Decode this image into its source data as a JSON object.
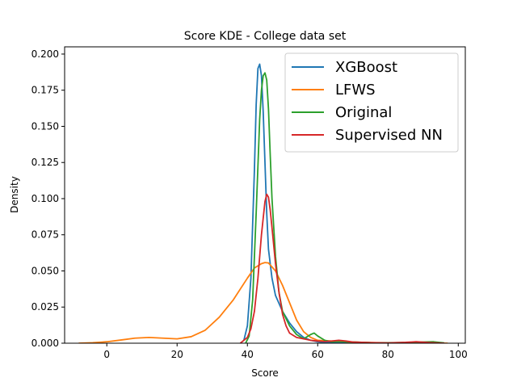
{
  "chart_data": {
    "type": "line",
    "title": "Score KDE - College data set",
    "xlabel": "Score",
    "ylabel": "Density",
    "xlim": [
      -12,
      102
    ],
    "ylim": [
      0,
      0.205
    ],
    "xticks": [
      0,
      20,
      40,
      60,
      80,
      100
    ],
    "xtick_labels": [
      "0",
      "20",
      "40",
      "60",
      "80",
      "100"
    ],
    "yticks": [
      0,
      0.025,
      0.05,
      0.075,
      0.1,
      0.125,
      0.15,
      0.175,
      0.2
    ],
    "ytick_labels": [
      "0.000",
      "0.025",
      "0.050",
      "0.075",
      "0.100",
      "0.125",
      "0.150",
      "0.175",
      "0.200"
    ],
    "grid": false,
    "legend_position": "top-right",
    "series": [
      {
        "name": "XGBoost",
        "color": "#1f77b4",
        "x": [
          39,
          40,
          41,
          42,
          42.5,
          43,
          43.5,
          44,
          44.5,
          45,
          45.5,
          46,
          47,
          48,
          50,
          52,
          54,
          56,
          58,
          60,
          62,
          64,
          66,
          68,
          70
        ],
        "y": [
          0.002,
          0.012,
          0.045,
          0.12,
          0.165,
          0.19,
          0.193,
          0.185,
          0.16,
          0.125,
          0.09,
          0.065,
          0.045,
          0.033,
          0.022,
          0.014,
          0.008,
          0.004,
          0.002,
          0.001,
          0.0005,
          0.0003,
          0.0002,
          0.0001,
          0.0
        ]
      },
      {
        "name": "LFWS",
        "color": "#ff7f0e",
        "x": [
          -8,
          -4,
          0,
          4,
          8,
          12,
          16,
          20,
          24,
          28,
          32,
          36,
          40,
          42,
          44,
          45,
          46,
          48,
          50,
          52,
          54,
          56,
          58,
          60,
          64,
          68,
          72,
          76,
          80,
          86,
          92,
          97
        ],
        "y": [
          0.0,
          0.0003,
          0.001,
          0.0022,
          0.0035,
          0.004,
          0.0035,
          0.003,
          0.0045,
          0.009,
          0.018,
          0.03,
          0.045,
          0.052,
          0.055,
          0.0558,
          0.0555,
          0.05,
          0.04,
          0.028,
          0.016,
          0.008,
          0.004,
          0.002,
          0.0015,
          0.001,
          0.0006,
          0.0004,
          0.0003,
          0.0002,
          0.0001,
          0.0
        ]
      },
      {
        "name": "Original",
        "color": "#2ca02c",
        "x": [
          39.5,
          40.5,
          41.5,
          42.5,
          43.5,
          44,
          44.5,
          45,
          45.5,
          46,
          46.5,
          47,
          48,
          49,
          50,
          52,
          54,
          56,
          58,
          59,
          60,
          62,
          64,
          66,
          70,
          75,
          80,
          85,
          90,
          93,
          96
        ],
        "y": [
          0.0,
          0.005,
          0.03,
          0.09,
          0.155,
          0.175,
          0.185,
          0.187,
          0.182,
          0.162,
          0.13,
          0.1,
          0.06,
          0.035,
          0.022,
          0.012,
          0.006,
          0.003,
          0.006,
          0.007,
          0.005,
          0.002,
          0.001,
          0.0012,
          0.0008,
          0.0004,
          0.0003,
          0.0005,
          0.0008,
          0.001,
          0.0002
        ]
      },
      {
        "name": "Supervised NN",
        "color": "#d62728",
        "x": [
          38,
          40,
          41,
          42,
          43,
          44,
          45,
          45.5,
          46,
          46.5,
          47,
          48,
          49,
          50,
          51,
          52,
          54,
          56,
          58,
          60,
          62,
          64,
          66,
          68,
          70,
          75,
          80,
          85,
          88,
          92,
          96
        ],
        "y": [
          0.0,
          0.004,
          0.01,
          0.022,
          0.045,
          0.075,
          0.098,
          0.103,
          0.101,
          0.092,
          0.08,
          0.055,
          0.035,
          0.02,
          0.012,
          0.007,
          0.004,
          0.003,
          0.002,
          0.0015,
          0.0012,
          0.0015,
          0.002,
          0.0015,
          0.0008,
          0.0004,
          0.0002,
          0.0006,
          0.001,
          0.0004,
          0.0
        ]
      }
    ]
  }
}
